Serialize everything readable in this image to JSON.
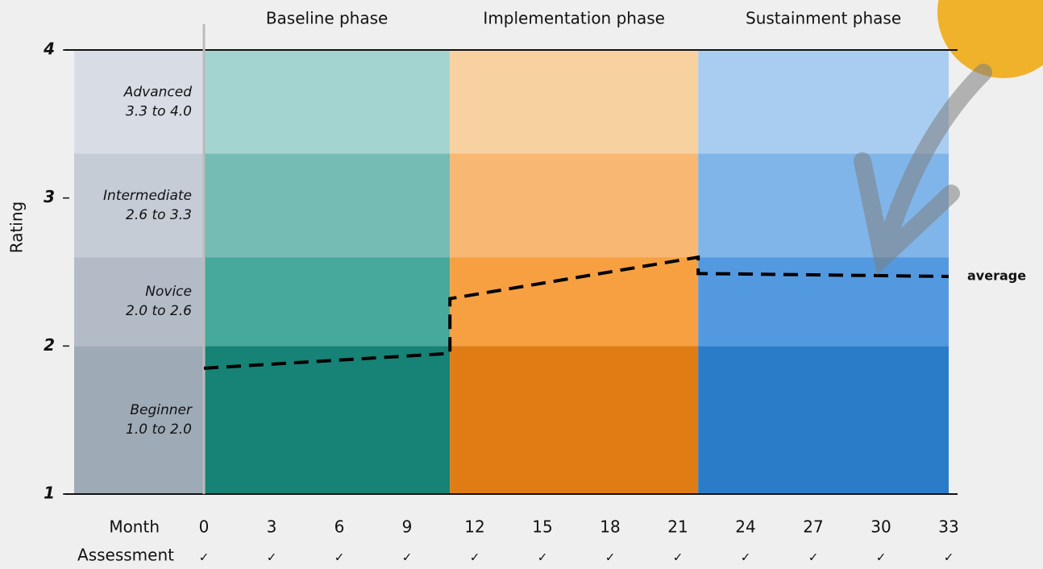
{
  "chart_data": {
    "type": "line",
    "y_label": "Rating",
    "ylim": [
      1,
      4
    ],
    "yticks": [
      1,
      2,
      3,
      4
    ],
    "x_label": "Month",
    "xlim": [
      0,
      33
    ],
    "xticks": [
      0,
      3,
      6,
      9,
      12,
      15,
      18,
      21,
      24,
      27,
      30,
      33
    ],
    "row_label": "Assessment",
    "assessments": [
      "✓",
      "✓",
      "✓",
      "✓",
      "✓",
      "✓",
      "✓",
      "✓",
      "✓",
      "✓",
      "✓",
      "✓"
    ],
    "levels": [
      {
        "name": "Beginner",
        "range": "1.0 to 2.0",
        "low": 1.0,
        "high": 2.0,
        "color": "#9eaab6"
      },
      {
        "name": "Novice",
        "range": "2.0 to 2.6",
        "low": 2.0,
        "high": 2.6,
        "color": "#b3bbc6"
      },
      {
        "name": "Intermediate",
        "range": "2.6 to 3.3",
        "low": 2.6,
        "high": 3.3,
        "color": "#c6ccd6"
      },
      {
        "name": "Advanced",
        "range": "3.3 to 4.0",
        "low": 3.3,
        "high": 4.0,
        "color": "#d8dce4"
      }
    ],
    "phases": [
      {
        "name": "Baseline phase",
        "start": 0,
        "end": 10.9,
        "colors": [
          "#178276",
          "#47a89c",
          "#75bcb5",
          "#a4d4cf"
        ]
      },
      {
        "name": "Implementation phase",
        "start": 10.9,
        "end": 21.9,
        "colors": [
          "#e07c14",
          "#f7a042",
          "#f8b873",
          "#f8d1a0"
        ]
      },
      {
        "name": "Sustainment phase",
        "start": 21.9,
        "end": 33,
        "colors": [
          "#2a7cc8",
          "#5399e0",
          "#80b5ea",
          "#a9cdf0"
        ]
      }
    ],
    "series": [
      {
        "name": "average",
        "color": "#000000",
        "x": [
          0,
          10.9,
          10.9,
          21.9,
          21.9,
          33
        ],
        "values": [
          1.85,
          1.95,
          2.32,
          2.6,
          2.49,
          2.47
        ]
      }
    ]
  }
}
